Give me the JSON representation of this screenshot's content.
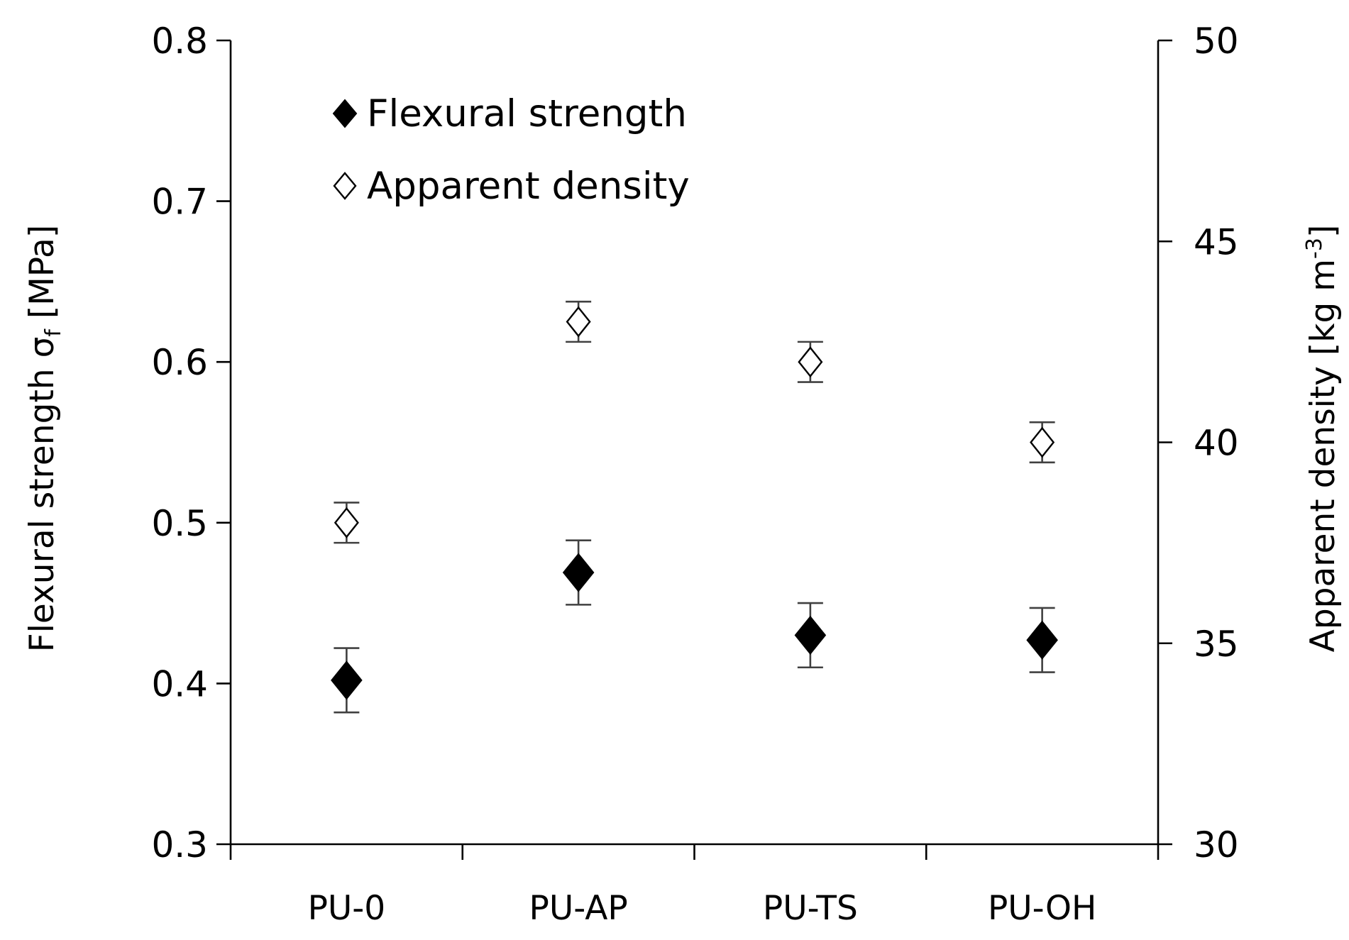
{
  "chart_data": {
    "type": "scatter",
    "categories": [
      "PU-0",
      "PU-AP",
      "PU-TS",
      "PU-OH"
    ],
    "series": [
      {
        "name": "Flexural strength",
        "axis": "left",
        "marker": "filled-diamond",
        "color": "#000000",
        "values": [
          0.402,
          0.469,
          0.43,
          0.427
        ],
        "errors": [
          0.02,
          0.02,
          0.02,
          0.02
        ]
      },
      {
        "name": "Apparent density",
        "axis": "right",
        "marker": "open-diamond",
        "color": "#000000",
        "values": [
          38.0,
          43.0,
          42.0,
          40.0
        ],
        "errors": [
          0.5,
          0.5,
          0.5,
          0.5
        ]
      }
    ],
    "y_left": {
      "label_main": "Flexural strength σ",
      "label_sub": "f",
      "label_unit": " [MPa]",
      "ylim": [
        0.3,
        0.8
      ],
      "ticks": [
        "0.3",
        "0.4",
        "0.5",
        "0.6",
        "0.7",
        "0.8"
      ]
    },
    "y_right": {
      "label_main": "Apparent density [kg m",
      "label_sup": "-3",
      "label_end": "]",
      "ylim": [
        30,
        50
      ],
      "ticks": [
        "30",
        "35",
        "40",
        "45",
        "50"
      ]
    },
    "grid": false,
    "legend_position": "top-left"
  }
}
